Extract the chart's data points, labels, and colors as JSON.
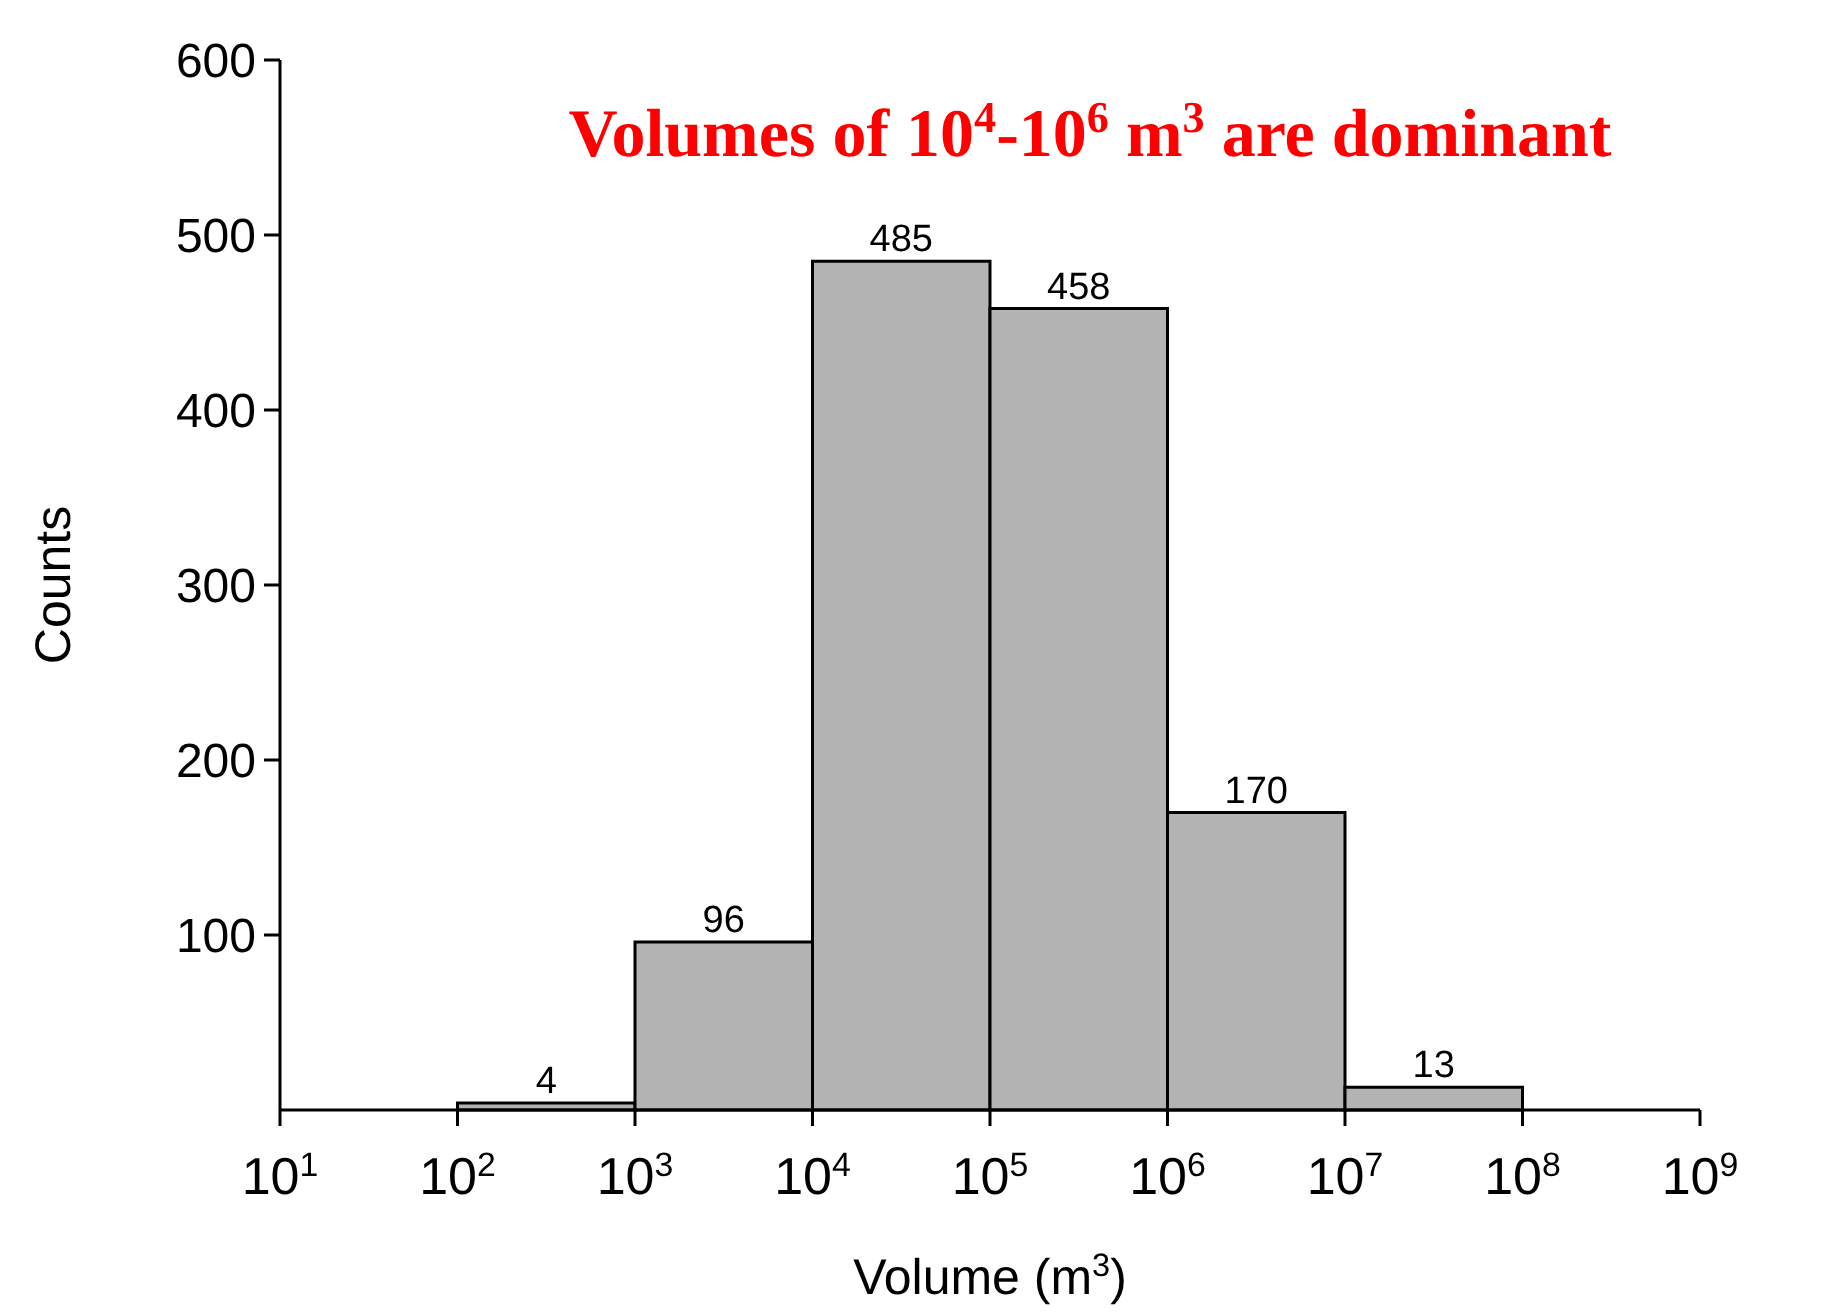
{
  "chart_data": {
    "type": "histogram",
    "title": "Volumes of 10$^{4}$-10$^{6}$ m$^{3}$ are dominant",
    "xlabel": "Volume (m$^{3}$)",
    "ylabel": "Counts",
    "bins": [
      100,
      1000,
      10000,
      100000,
      1000000,
      10000000,
      100000000
    ],
    "values": [
      4,
      96,
      485,
      458,
      170,
      13
    ],
    "color": "#b3b3b3",
    "data_labels": true,
    "log": "x",
    "xlim": [
      10,
      1000000000
    ],
    "xticks": [
      {
        "value": 10,
        "label": "10$^{1}$"
      },
      {
        "value": 100,
        "label": "10$^{2}$"
      },
      {
        "value": 1000,
        "label": "10$^{3}$"
      },
      {
        "value": 10000,
        "label": "10$^{4}$"
      },
      {
        "value": 100000,
        "label": "10$^{5}$"
      },
      {
        "value": 1000000,
        "label": "10$^{6}$"
      },
      {
        "value": 10000000,
        "label": "10$^{7}$"
      },
      {
        "value": 100000000,
        "label": "10$^{8}$"
      },
      {
        "value": 1000000000,
        "label": "10$^{9}$"
      }
    ],
    "ylim": [
      0,
      600
    ],
    "yticks": [
      100,
      200,
      300,
      400,
      500,
      600
    ],
    "grid": false
  }
}
